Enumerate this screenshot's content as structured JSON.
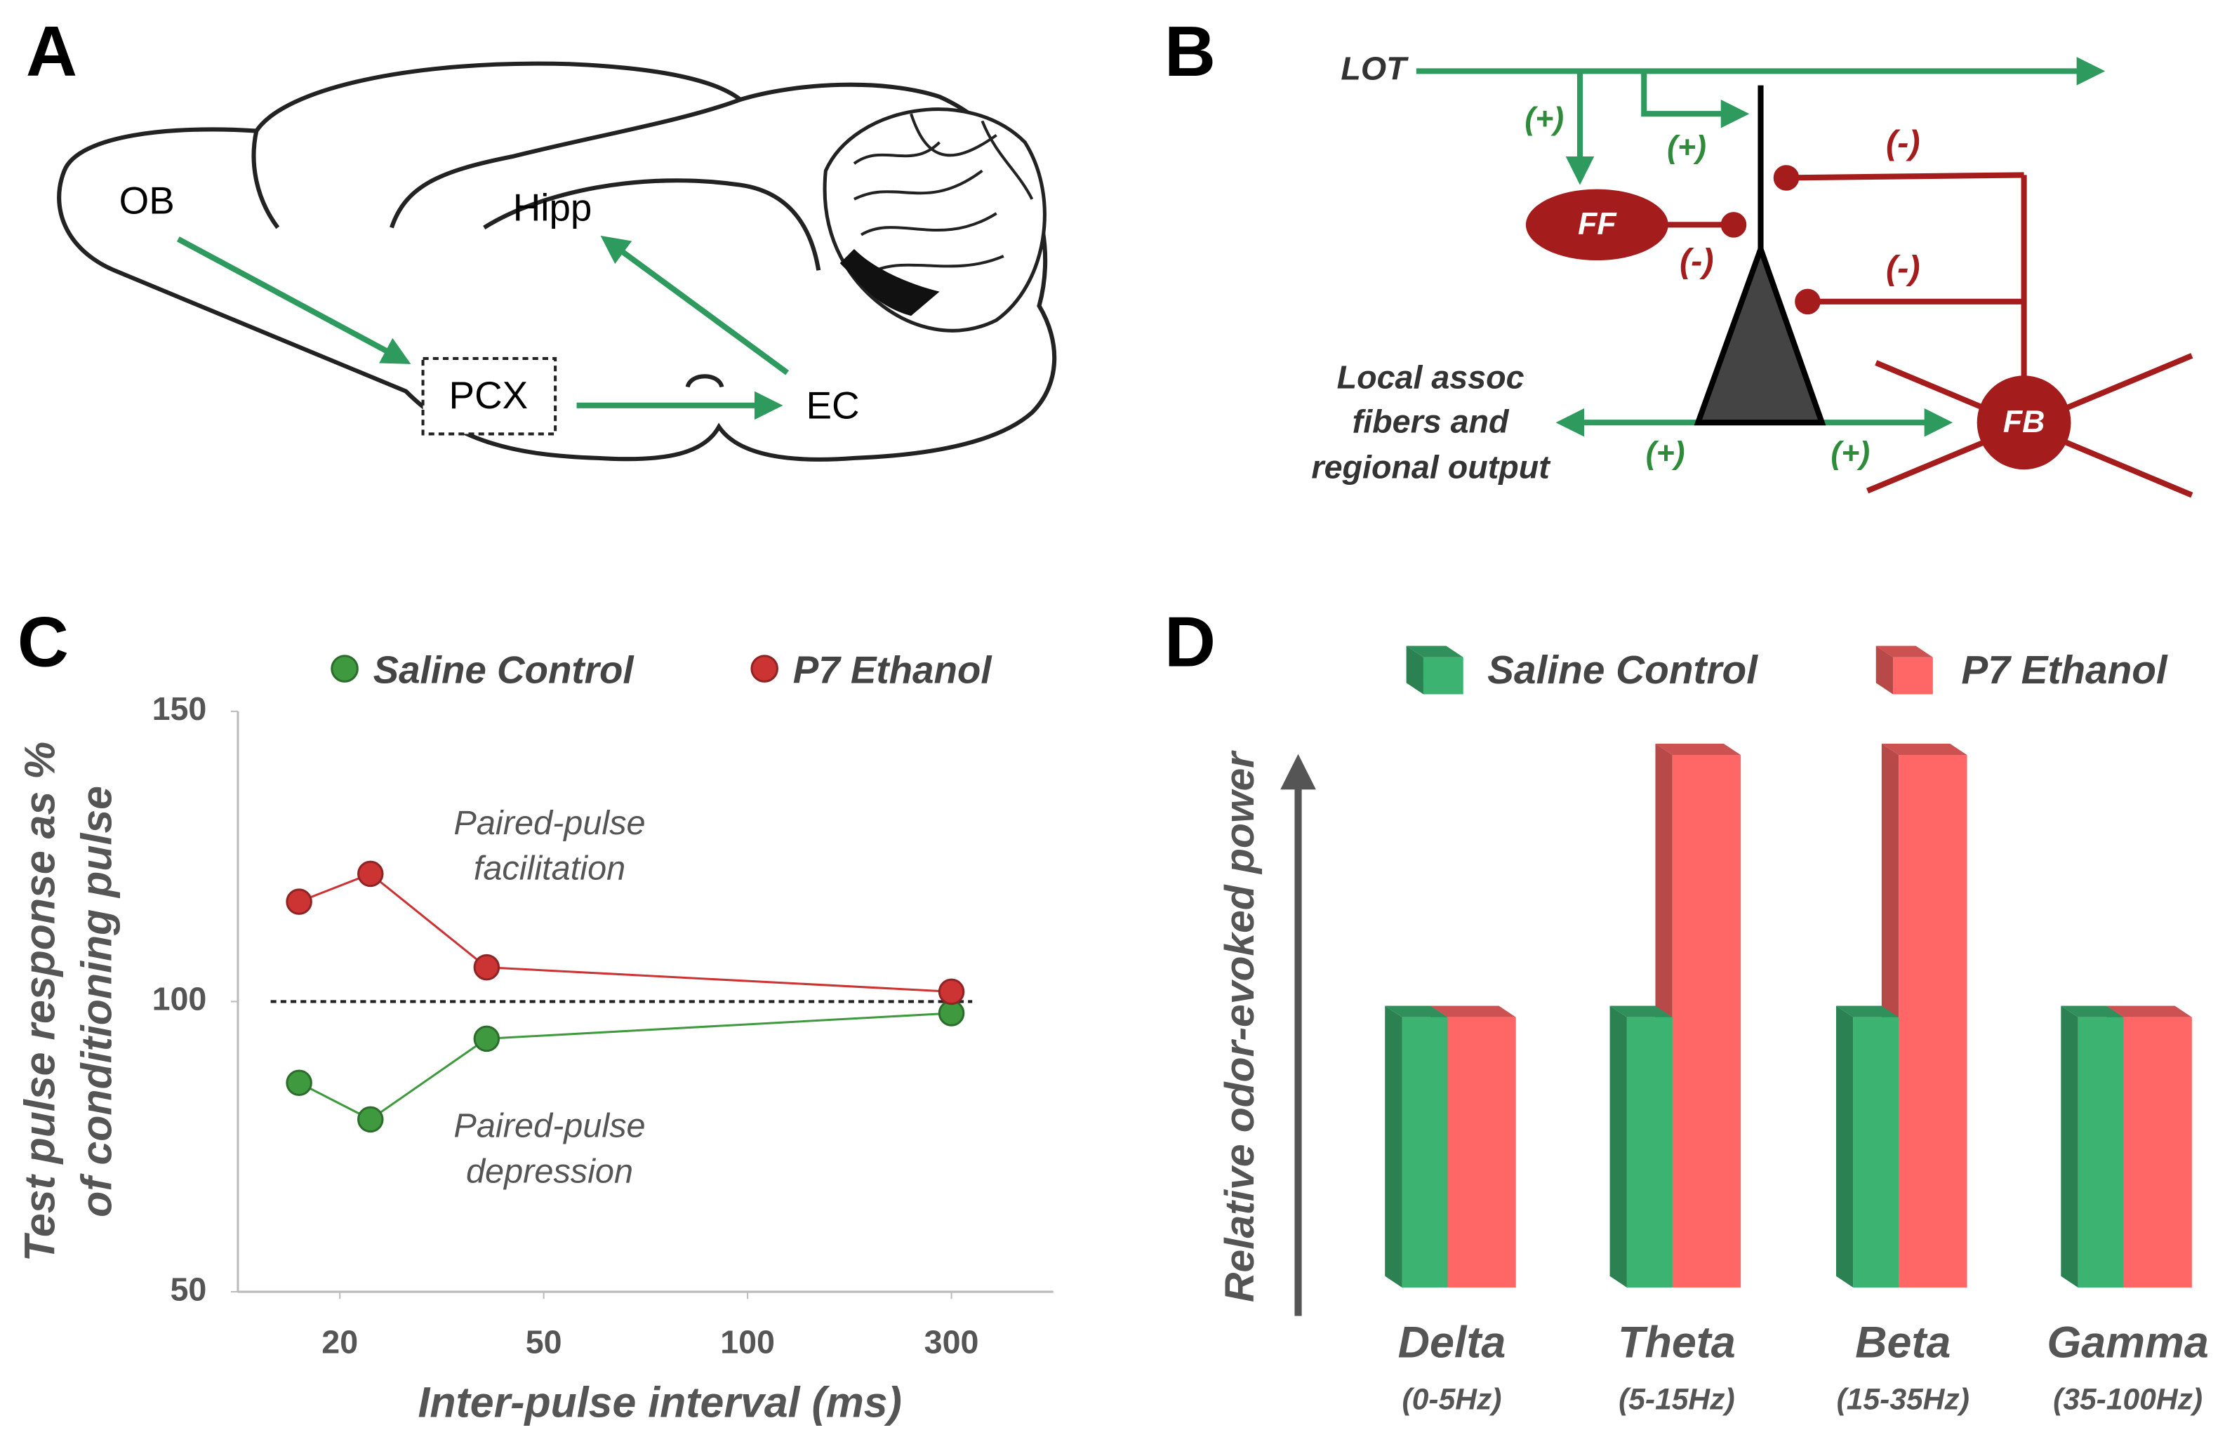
{
  "panel_labels": [
    "A",
    "B",
    "C",
    "D"
  ],
  "diagram_a": {
    "labels": [
      "OB",
      "Hipp",
      "PCX",
      "EC"
    ]
  },
  "diagram_b": {
    "input": "LOT",
    "feedforward": "FF",
    "feedback": "FB",
    "excitatory": [
      "(+)",
      "(+)",
      "(+)",
      "(+)"
    ],
    "inhibitory": [
      "(-)",
      "(-)",
      "(-)"
    ],
    "association": [
      "Local assoc",
      "fibers and",
      "regional output"
    ]
  },
  "chart_data": [
    {
      "type": "line",
      "ylabel": [
        "Test pulse response as %",
        "of conditioning pulse"
      ],
      "xlabel": "Inter-pulse interval (ms)",
      "x": [
        0.8,
        1.15,
        1.72,
        4.0
      ],
      "xlim": [
        0.5,
        4.5
      ],
      "xticks": [
        {
          "value": 1,
          "label": "20"
        },
        {
          "value": 2,
          "label": "50"
        },
        {
          "value": 3,
          "label": "100"
        },
        {
          "value": 4,
          "label": "300"
        }
      ],
      "ylim": [
        50,
        150
      ],
      "yticks": [
        50,
        100,
        150
      ],
      "reference_line": 100,
      "series": [
        {
          "name": "Saline Control",
          "color": "#3f9a3f",
          "values": [
            86,
            79.7,
            93.6,
            98
          ]
        },
        {
          "name": "P7 Ethanol",
          "color": "#cc3333",
          "values": [
            117.2,
            122,
            105.9,
            101.7
          ]
        }
      ],
      "annotations": [
        [
          "Paired-pulse",
          "facilitation"
        ],
        [
          "Paired-pulse",
          "depression"
        ]
      ]
    },
    {
      "type": "bar",
      "ylabel": "Relative odor-evoked power",
      "categories": [
        "Delta",
        "Theta",
        "Beta",
        "Gamma"
      ],
      "category_notes": [
        "(0-5Hz)",
        "(5-15Hz)",
        "(15-35Hz)",
        "(35-100Hz)"
      ],
      "series": [
        {
          "name": "Saline Control",
          "color": "#3cb371",
          "values": [
            1,
            1,
            1,
            1
          ]
        },
        {
          "name": "P7 Ethanol",
          "color": "#ff6666",
          "values": [
            1,
            1.97,
            1.97,
            1
          ]
        }
      ]
    }
  ]
}
